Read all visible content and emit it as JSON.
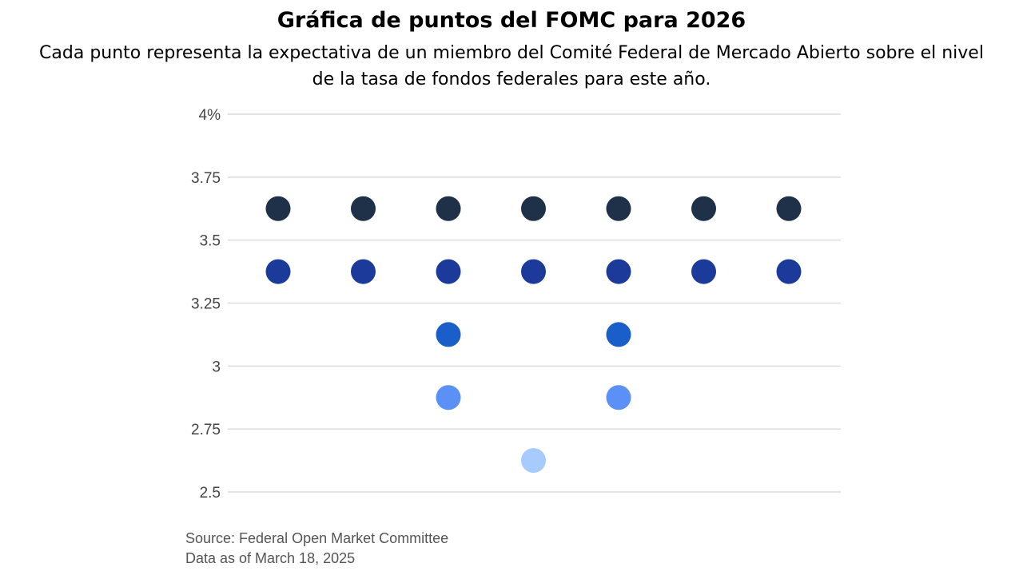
{
  "header": {
    "title": "Gráfica de puntos del FOMC para 2026",
    "subtitle": "Cada punto representa la expectativa de un miembro del Comité Federal de Mercado Abierto sobre el nivel de la tasa de fondos federales para este año."
  },
  "footer": {
    "source": "Source: Federal Open Market Committee",
    "date": "Data as of March 18, 2025"
  },
  "chart_data": {
    "type": "scatter",
    "title": "Gráfica de puntos del FOMC para 2026",
    "xlabel": "",
    "ylabel": "",
    "ylim": [
      2.5,
      4.0
    ],
    "yticks": [
      {
        "value": 4.0,
        "label": "4%"
      },
      {
        "value": 3.75,
        "label": "3.75"
      },
      {
        "value": 3.5,
        "label": "3.5"
      },
      {
        "value": 3.25,
        "label": "3.25"
      },
      {
        "value": 3.0,
        "label": "3"
      },
      {
        "value": 2.75,
        "label": "2.75"
      },
      {
        "value": 2.5,
        "label": "2.5"
      }
    ],
    "grid": true,
    "dot_rows": [
      {
        "rate": 3.625,
        "count": 7,
        "color": "#1f3049"
      },
      {
        "rate": 3.375,
        "count": 7,
        "color": "#1b3a9a"
      },
      {
        "rate": 3.125,
        "count": 2,
        "color": "#1a5fc9"
      },
      {
        "rate": 2.875,
        "count": 2,
        "color": "#5b91f7"
      },
      {
        "rate": 2.625,
        "count": 1,
        "color": "#a6cbfc"
      }
    ],
    "colors": {
      "gridline": "#dcdcdc"
    }
  }
}
